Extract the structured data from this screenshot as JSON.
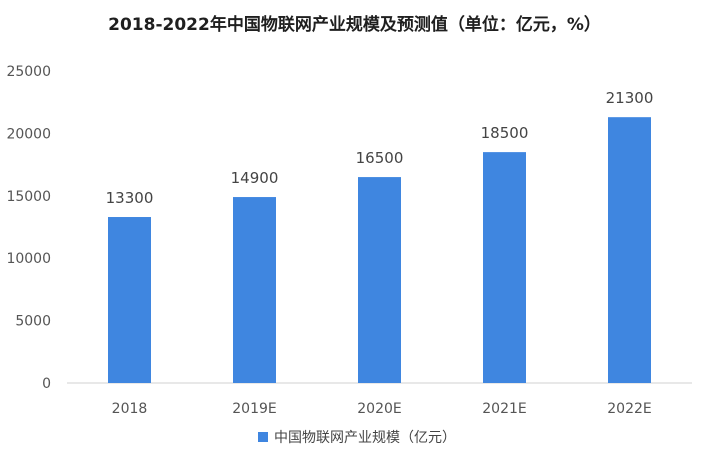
{
  "chart_data": {
    "type": "bar",
    "title": "2018-2022年中国物联网产业规模及预测值（单位：亿元，%）",
    "categories": [
      "2018",
      "2019E",
      "2020E",
      "2021E",
      "2022E"
    ],
    "series": [
      {
        "name": "中国物联网产业规模（亿元）",
        "values": [
          13300,
          14900,
          16500,
          18500,
          21300
        ]
      }
    ],
    "ylim": [
      0,
      25000
    ],
    "yticks": [
      0,
      5000,
      10000,
      15000,
      20000,
      25000
    ],
    "grid": false,
    "legend": "bottom",
    "colors": {
      "bar": "#3f86e0",
      "axis": "#d0d0d0"
    }
  }
}
